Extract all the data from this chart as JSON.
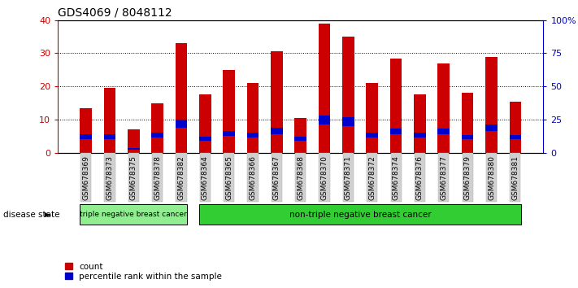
{
  "title": "GDS4069 / 8048112",
  "samples": [
    "GSM678369",
    "GSM678373",
    "GSM678375",
    "GSM678378",
    "GSM678382",
    "GSM678364",
    "GSM678365",
    "GSM678366",
    "GSM678367",
    "GSM678368",
    "GSM678370",
    "GSM678371",
    "GSM678372",
    "GSM678374",
    "GSM678376",
    "GSM678377",
    "GSM678379",
    "GSM678380",
    "GSM678381"
  ],
  "counts": [
    13.5,
    19.5,
    7.0,
    15.0,
    33.0,
    17.5,
    25.0,
    21.0,
    30.5,
    10.5,
    39.0,
    35.0,
    21.0,
    28.5,
    17.5,
    27.0,
    18.0,
    29.0,
    15.5
  ],
  "percentile_ranks": [
    1.5,
    1.5,
    0.5,
    1.5,
    2.5,
    1.2,
    1.6,
    1.5,
    2.0,
    1.2,
    2.8,
    2.7,
    1.5,
    1.8,
    1.5,
    1.8,
    1.3,
    2.1,
    1.4
  ],
  "percentile_offsets": [
    4.0,
    4.0,
    1.0,
    4.5,
    7.5,
    3.5,
    5.0,
    4.5,
    5.5,
    3.5,
    8.5,
    8.0,
    4.5,
    5.5,
    4.5,
    5.5,
    4.0,
    6.5,
    4.0
  ],
  "bar_color": "#cc0000",
  "percentile_color": "#0000cc",
  "ylim": [
    0,
    40
  ],
  "y2lim": [
    0,
    100
  ],
  "yticks": [
    0,
    10,
    20,
    30,
    40
  ],
  "ytick_labels_left": [
    "0",
    "10",
    "20",
    "30",
    "40"
  ],
  "ytick_labels_right": [
    "0",
    "25",
    "50",
    "75",
    "100%"
  ],
  "group1_label": "triple negative breast cancer",
  "group2_label": "non-triple negative breast cancer",
  "group1_count": 5,
  "group2_count": 14,
  "disease_state_label": "disease state",
  "legend_count_label": "count",
  "legend_pct_label": "percentile rank within the sample",
  "bg_color": "#ffffff",
  "plot_bg_color": "#ffffff",
  "xtick_bg_color": "#d0d0d0",
  "tick_label_color_left": "#cc0000",
  "tick_label_color_right": "#0000cc",
  "group1_color": "#90ee90",
  "group2_color": "#32cd32",
  "bar_width": 0.5
}
